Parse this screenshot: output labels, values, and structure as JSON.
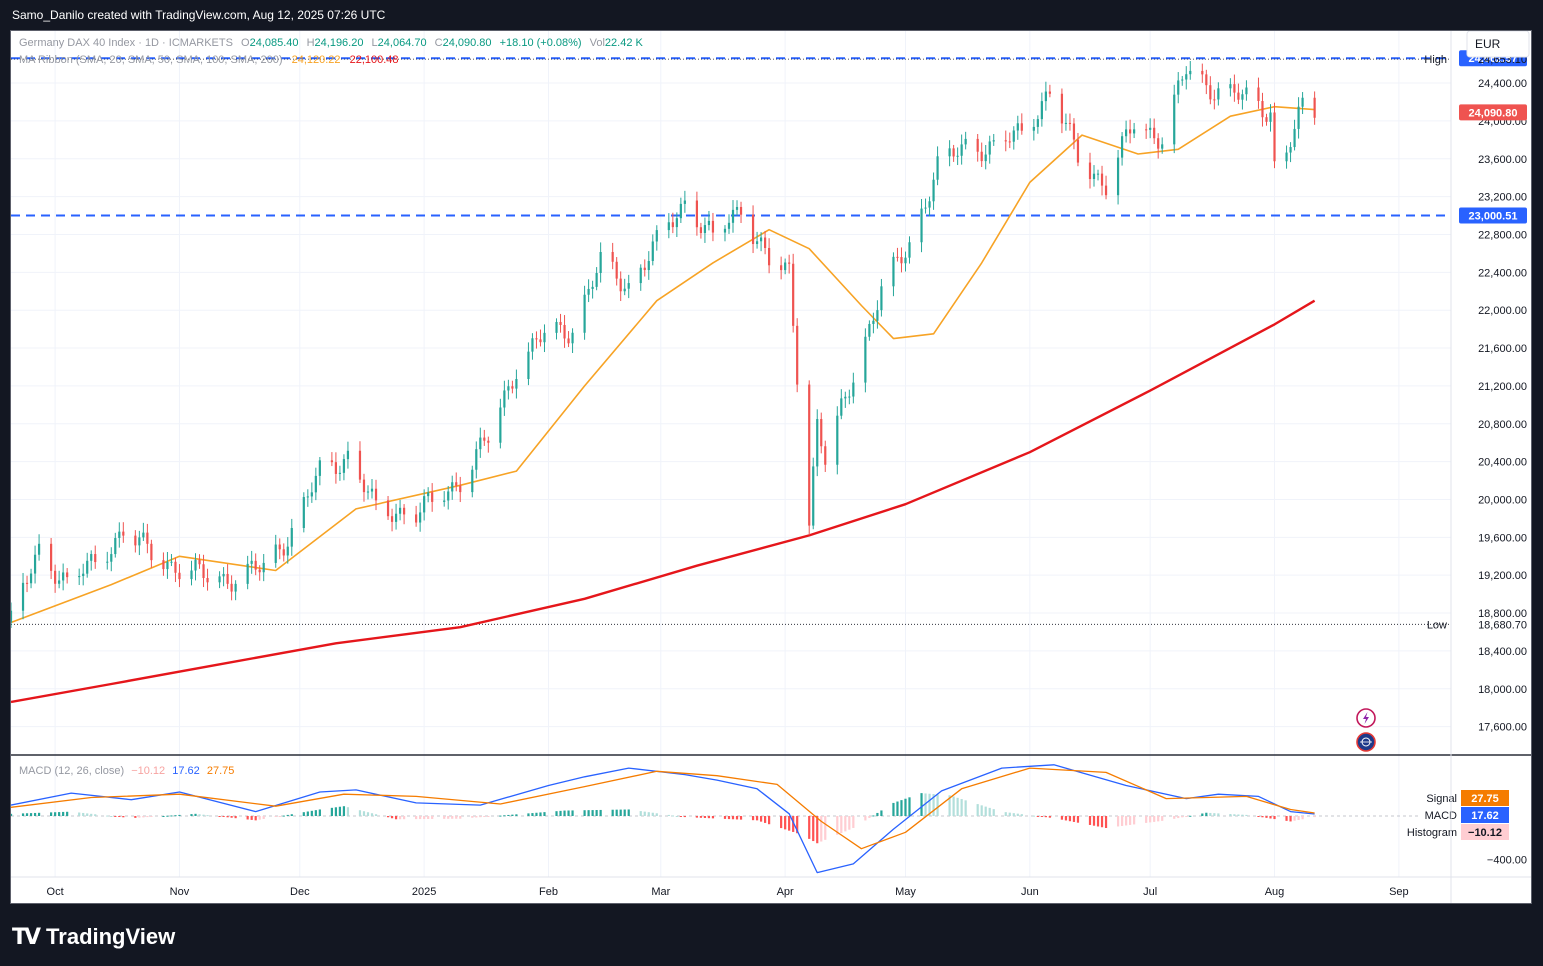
{
  "header": {
    "credit": "Samo_Danilo created with TradingView.com, Aug 12, 2025 07:26 UTC"
  },
  "legend": {
    "symbol": "Germany DAX 40 Index · 1D · ICMARKETS",
    "o_label": "O",
    "o_val": "24,085.40",
    "h_label": "H",
    "h_val": "24,196.20",
    "l_label": "L",
    "l_val": "24,064.70",
    "c_label": "C",
    "c_val": "24,090.80",
    "chg": "+18.10 (+0.08%)",
    "vol_label": "Vol",
    "vol_val": "22.42 K",
    "ma_label": "MA Ribbon (SMA, 20, SMA, 50, SMA, 100, SMA, 200)",
    "ma_val1": "24,120.22",
    "ma_val2": "22,100.48"
  },
  "currency": "EUR",
  "macd_legend": {
    "label": "MACD (12, 26, close)",
    "v1": "−10.12",
    "v2": "17.62",
    "v3": "27.75"
  },
  "footer": {
    "brand": "TradingView"
  },
  "colors": {
    "up": "#26a69a",
    "down": "#ef5350",
    "sma20": "#f7a325",
    "sma200": "#e5161b",
    "level": "#2962ff",
    "macd": "#2962ff",
    "signal": "#f57c00"
  },
  "icons": [
    "lightning-icon",
    "globe-icon"
  ],
  "chart_data": [
    {
      "type": "candlestick",
      "title": "Germany DAX 40 Index · 1D · ICMARKETS",
      "ylim": [
        17300,
        24950
      ],
      "yticks": [
        17600,
        18000,
        18400,
        18800,
        19200,
        19600,
        20000,
        20400,
        20800,
        21200,
        21600,
        22000,
        22400,
        22800,
        23200,
        23600,
        24000,
        24400
      ],
      "ytick_labels": [
        "17,600.00",
        "18,000.00",
        "18,400.00",
        "18,800.00",
        "19,200.00",
        "19,600.00",
        "20,000.00",
        "20,400.00",
        "20,800.00",
        "21,200.00",
        "21,600.00",
        "22,000.00",
        "22,400.00",
        "22,800.00",
        "23,200.00",
        "23,600.00",
        "24,000.00",
        "24,400.00"
      ],
      "x_tick_labels": [
        "Oct",
        "Nov",
        "Dec",
        "2025",
        "Feb",
        "Mar",
        "Apr",
        "May",
        "Jun",
        "Jul",
        "Aug",
        "Sep"
      ],
      "x_tick_dates": [
        "2024-10-01",
        "2024-11-01",
        "2024-12-01",
        "2025-01-01",
        "2025-02-01",
        "2025-03-01",
        "2025-04-01",
        "2025-05-01",
        "2025-06-01",
        "2025-07-01",
        "2025-08-01",
        "2025-09-01"
      ],
      "x_range": [
        "2024-09-20",
        "2025-09-14"
      ],
      "levels": [
        {
          "name": "level-24662",
          "value": 24662.57,
          "label": "24,662.57",
          "style": "dashed"
        },
        {
          "name": "level-23000",
          "value": 23000.51,
          "label": "23,000.51",
          "style": "dashed"
        }
      ],
      "high": {
        "label": "High",
        "value": 24653.1,
        "value_label": "24,653.10"
      },
      "low": {
        "label": "Low",
        "value": 18680.7,
        "value_label": "18,680.70"
      },
      "last_price": {
        "value": 24090.8,
        "label": "24,090.80"
      },
      "ohlc_anchors": [
        [
          "2024-09-20",
          18700
        ],
        [
          "2024-09-27",
          19470
        ],
        [
          "2024-10-04",
          19100
        ],
        [
          "2024-10-11",
          19350
        ],
        [
          "2024-10-18",
          19650
        ],
        [
          "2024-10-25",
          19450
        ],
        [
          "2024-11-01",
          19250
        ],
        [
          "2024-11-08",
          19200
        ],
        [
          "2024-11-15",
          19150
        ],
        [
          "2024-11-22",
          19300
        ],
        [
          "2024-11-29",
          19650
        ],
        [
          "2024-12-06",
          20300
        ],
        [
          "2024-12-13",
          20450
        ],
        [
          "2024-12-20",
          19900
        ],
        [
          "2024-12-30",
          19850
        ],
        [
          "2025-01-10",
          20200
        ],
        [
          "2025-01-17",
          20650
        ],
        [
          "2025-01-24",
          21400
        ],
        [
          "2025-01-31",
          21750
        ],
        [
          "2025-02-07",
          21800
        ],
        [
          "2025-02-14",
          22500
        ],
        [
          "2025-02-21",
          22250
        ],
        [
          "2025-02-28",
          22700
        ],
        [
          "2025-03-07",
          23150
        ],
        [
          "2025-03-14",
          22750
        ],
        [
          "2025-03-21",
          23100
        ],
        [
          "2025-03-28",
          22500
        ],
        [
          "2025-04-02",
          22400
        ],
        [
          "2025-04-07",
          19800
        ],
        [
          "2025-04-09",
          20800
        ],
        [
          "2025-04-11",
          20400
        ],
        [
          "2025-04-17",
          21200
        ],
        [
          "2025-04-25",
          22200
        ],
        [
          "2025-05-02",
          22700
        ],
        [
          "2025-05-09",
          23500
        ],
        [
          "2025-05-16",
          23750
        ],
        [
          "2025-05-23",
          23700
        ],
        [
          "2025-05-30",
          23900
        ],
        [
          "2025-06-06",
          24300
        ],
        [
          "2025-06-13",
          23650
        ],
        [
          "2025-06-20",
          23300
        ],
        [
          "2025-06-27",
          24000
        ],
        [
          "2025-07-04",
          23800
        ],
        [
          "2025-07-10",
          24550
        ],
        [
          "2025-07-18",
          24300
        ],
        [
          "2025-07-25",
          24250
        ],
        [
          "2025-07-31",
          24100
        ],
        [
          "2025-08-01",
          23500
        ],
        [
          "2025-08-04",
          23650
        ],
        [
          "2025-08-08",
          24150
        ],
        [
          "2025-08-11",
          24090
        ]
      ],
      "series": [
        {
          "name": "MA Ribbon SMA 20",
          "last": 24120.22,
          "points": [
            [
              "2024-09-20",
              18700
            ],
            [
              "2024-10-15",
              19100
            ],
            [
              "2024-11-01",
              19400
            ],
            [
              "2024-11-25",
              19250
            ],
            [
              "2024-12-15",
              19900
            ],
            [
              "2025-01-10",
              20150
            ],
            [
              "2025-01-24",
              20300
            ],
            [
              "2025-02-10",
              21200
            ],
            [
              "2025-02-28",
              22100
            ],
            [
              "2025-03-14",
              22500
            ],
            [
              "2025-03-28",
              22850
            ],
            [
              "2025-04-07",
              22650
            ],
            [
              "2025-04-20",
              22050
            ],
            [
              "2025-04-28",
              21700
            ],
            [
              "2025-05-08",
              21750
            ],
            [
              "2025-05-20",
              22500
            ],
            [
              "2025-06-01",
              23350
            ],
            [
              "2025-06-14",
              23850
            ],
            [
              "2025-06-28",
              23650
            ],
            [
              "2025-07-08",
              23700
            ],
            [
              "2025-07-21",
              24050
            ],
            [
              "2025-08-01",
              24150
            ],
            [
              "2025-08-11",
              24120
            ]
          ]
        },
        {
          "name": "MA Ribbon SMA 200",
          "last": 22100.48,
          "points": [
            [
              "2024-09-20",
              17860
            ],
            [
              "2024-10-15",
              18050
            ],
            [
              "2024-11-10",
              18250
            ],
            [
              "2024-12-10",
              18480
            ],
            [
              "2025-01-10",
              18650
            ],
            [
              "2025-02-10",
              18950
            ],
            [
              "2025-03-10",
              19300
            ],
            [
              "2025-04-07",
              19620
            ],
            [
              "2025-05-01",
              19950
            ],
            [
              "2025-06-01",
              20500
            ],
            [
              "2025-07-01",
              21150
            ],
            [
              "2025-08-01",
              21850
            ],
            [
              "2025-08-11",
              22100
            ]
          ]
        }
      ]
    },
    {
      "type": "line",
      "title": "MACD (12, 26, close)",
      "ylim": [
        -560,
        560
      ],
      "yticks": [
        -400
      ],
      "ytick_labels": [
        "−400.00"
      ],
      "series": [
        {
          "name": "MACD",
          "value_label": "17.62",
          "points": [
            [
              "2024-09-20",
              100
            ],
            [
              "2024-10-05",
              210
            ],
            [
              "2024-10-20",
              150
            ],
            [
              "2024-11-01",
              220
            ],
            [
              "2024-11-20",
              40
            ],
            [
              "2024-12-06",
              220
            ],
            [
              "2024-12-15",
              240
            ],
            [
              "2024-12-30",
              120
            ],
            [
              "2025-01-15",
              100
            ],
            [
              "2025-02-01",
              280
            ],
            [
              "2025-02-10",
              360
            ],
            [
              "2025-02-21",
              440
            ],
            [
              "2025-03-07",
              380
            ],
            [
              "2025-03-15",
              330
            ],
            [
              "2025-03-25",
              250
            ],
            [
              "2025-04-02",
              20
            ],
            [
              "2025-04-09",
              -520
            ],
            [
              "2025-04-18",
              -440
            ],
            [
              "2025-04-28",
              -120
            ],
            [
              "2025-05-10",
              230
            ],
            [
              "2025-05-25",
              440
            ],
            [
              "2025-06-07",
              470
            ],
            [
              "2025-06-25",
              280
            ],
            [
              "2025-07-10",
              160
            ],
            [
              "2025-07-18",
              200
            ],
            [
              "2025-07-28",
              180
            ],
            [
              "2025-08-05",
              40
            ],
            [
              "2025-08-11",
              18
            ]
          ]
        },
        {
          "name": "Signal",
          "value_label": "27.75",
          "points": [
            [
              "2024-09-20",
              80
            ],
            [
              "2024-10-10",
              170
            ],
            [
              "2024-11-01",
              200
            ],
            [
              "2024-11-25",
              90
            ],
            [
              "2024-12-12",
              200
            ],
            [
              "2024-12-30",
              180
            ],
            [
              "2025-01-20",
              110
            ],
            [
              "2025-02-10",
              270
            ],
            [
              "2025-02-28",
              410
            ],
            [
              "2025-03-15",
              370
            ],
            [
              "2025-03-30",
              290
            ],
            [
              "2025-04-10",
              -50
            ],
            [
              "2025-04-20",
              -300
            ],
            [
              "2025-05-01",
              -150
            ],
            [
              "2025-05-15",
              250
            ],
            [
              "2025-06-01",
              440
            ],
            [
              "2025-06-20",
              400
            ],
            [
              "2025-07-05",
              160
            ],
            [
              "2025-07-25",
              180
            ],
            [
              "2025-08-05",
              60
            ],
            [
              "2025-08-11",
              28
            ]
          ]
        }
      ],
      "histogram": {
        "name": "Histogram",
        "value_label": "−10.12",
        "last": -10.12,
        "points": [
          [
            "2024-09-20",
            20
          ],
          [
            "2024-10-05",
            40
          ],
          [
            "2024-10-20",
            -20
          ],
          [
            "2024-11-05",
            20
          ],
          [
            "2024-11-20",
            -40
          ],
          [
            "2024-12-06",
            60
          ],
          [
            "2024-12-12",
            90
          ],
          [
            "2024-12-25",
            -30
          ],
          [
            "2025-01-10",
            -25
          ],
          [
            "2025-02-05",
            50
          ],
          [
            "2025-02-21",
            60
          ],
          [
            "2025-03-07",
            -10
          ],
          [
            "2025-03-25",
            -40
          ],
          [
            "2025-04-05",
            -170
          ],
          [
            "2025-04-09",
            -250
          ],
          [
            "2025-04-18",
            -110
          ],
          [
            "2025-04-28",
            120
          ],
          [
            "2025-05-05",
            210
          ],
          [
            "2025-05-12",
            190
          ],
          [
            "2025-05-25",
            40
          ],
          [
            "2025-06-07",
            -20
          ],
          [
            "2025-06-20",
            -110
          ],
          [
            "2025-07-05",
            -40
          ],
          [
            "2025-07-15",
            30
          ],
          [
            "2025-07-25",
            10
          ],
          [
            "2025-08-05",
            -50
          ],
          [
            "2025-08-11",
            -10
          ]
        ]
      },
      "labels": [
        {
          "name": "Signal",
          "value": "27.75"
        },
        {
          "name": "MACD",
          "value": "17.62"
        },
        {
          "name": "Histogram",
          "value": "−10.12"
        }
      ]
    }
  ]
}
